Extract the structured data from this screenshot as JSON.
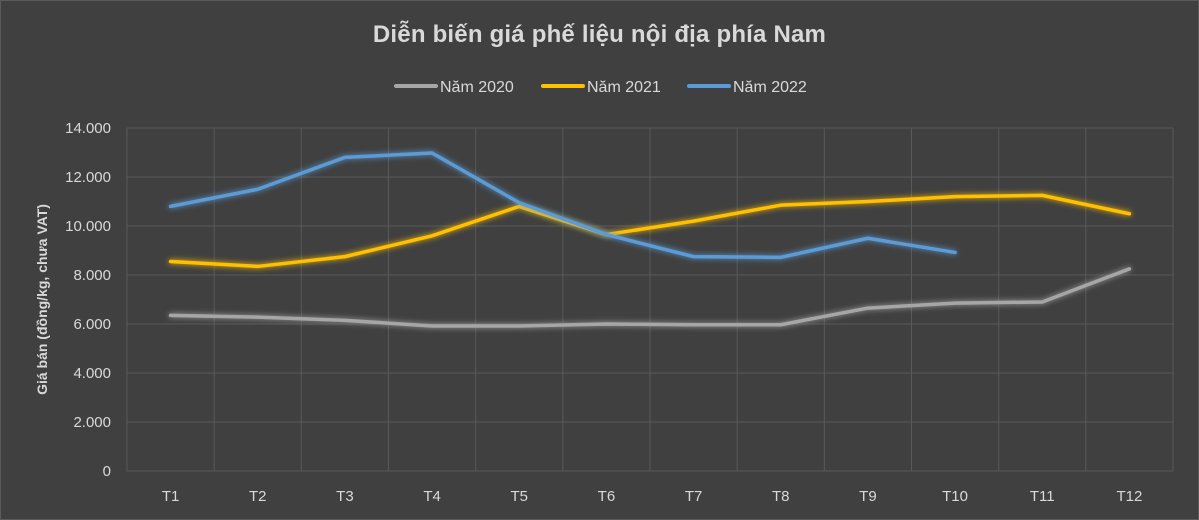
{
  "chart_data": {
    "type": "line",
    "title": "Diễn biến giá phế liệu nội địa phía Nam",
    "xlabel": "",
    "ylabel": "Giá bán (đồng/kg, chưa VAT)",
    "categories": [
      "T1",
      "T2",
      "T3",
      "T4",
      "T5",
      "T6",
      "T7",
      "T8",
      "T9",
      "T10",
      "T11",
      "T12"
    ],
    "y_ticks": [
      "0",
      "2.000",
      "4.000",
      "6.000",
      "8.000",
      "10.000",
      "12.000",
      "14.000"
    ],
    "ylim": [
      0,
      14000
    ],
    "grid": true,
    "legend_position": "top",
    "series": [
      {
        "name": "Năm 2020",
        "color": "#a6a6a6",
        "values": [
          6350,
          6280,
          6150,
          5920,
          5920,
          6000,
          5970,
          5970,
          6650,
          6850,
          6900,
          8250
        ]
      },
      {
        "name": "Năm 2021",
        "color": "#ffc000",
        "values": [
          8550,
          8350,
          8750,
          9600,
          10800,
          9650,
          10200,
          10850,
          11000,
          11200,
          11250,
          10500
        ]
      },
      {
        "name": "Năm 2022",
        "color": "#5b9bd5",
        "values": [
          10800,
          11500,
          12800,
          12980,
          10950,
          9650,
          8750,
          8720,
          9500,
          8920,
          null,
          null
        ]
      }
    ]
  }
}
